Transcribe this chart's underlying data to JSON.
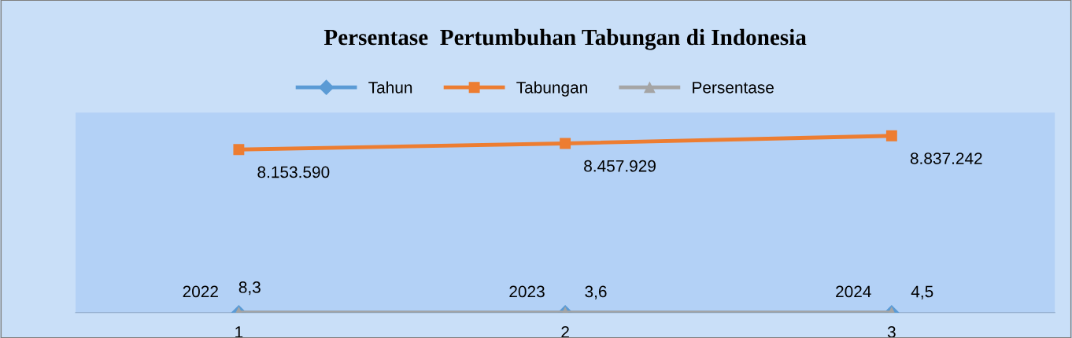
{
  "chart_data": {
    "type": "line",
    "title": "Persentase  Pertumbuhan Tabungan di Indonesia",
    "categories": [
      "1",
      "2",
      "3"
    ],
    "series": [
      {
        "name": "Tahun",
        "color": "#5b9bd5",
        "marker": "diamond",
        "values": [
          2022,
          2023,
          2024
        ],
        "value_labels": [
          "2022",
          "2023",
          "2024"
        ]
      },
      {
        "name": "Tabungan",
        "color": "#ed7d31",
        "marker": "square",
        "values": [
          8153590,
          8457929,
          8837242
        ],
        "value_labels": [
          "8.153.590",
          "8.457.929",
          "8.837.242"
        ]
      },
      {
        "name": "Persentase",
        "color": "#a5a5a5",
        "marker": "triangle",
        "values": [
          8.3,
          3.6,
          4.5
        ],
        "value_labels": [
          "8,3",
          "3,6",
          "4,5"
        ]
      }
    ],
    "ylim": [
      0,
      10000000
    ],
    "tick_labels": "x",
    "grid": false,
    "legend": "top",
    "line_style": "solid"
  }
}
